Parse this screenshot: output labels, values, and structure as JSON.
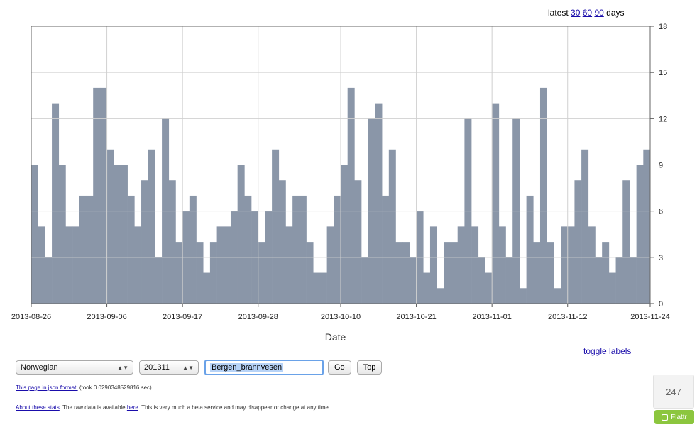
{
  "header": {
    "latest_label": "latest",
    "links": [
      "30",
      "60",
      "90"
    ],
    "days_label": "days"
  },
  "chart_data": {
    "type": "bar",
    "title": "",
    "xlabel": "Date",
    "ylabel": "",
    "ylim": [
      0,
      18
    ],
    "y_ticks": [
      0,
      3,
      6,
      9,
      12,
      15,
      18
    ],
    "y_axis_side": "right",
    "grid": true,
    "bar_color": "#8a96a8",
    "x_start": "2013-08-26",
    "x_end": "2013-11-24",
    "x_tick_labels": [
      "2013-08-26",
      "2013-09-06",
      "2013-09-17",
      "2013-09-28",
      "2013-10-10",
      "2013-10-21",
      "2013-11-01",
      "2013-11-12",
      "2013-11-24"
    ],
    "values": [
      9,
      5,
      3,
      13,
      9,
      5,
      5,
      7,
      7,
      14,
      14,
      10,
      9,
      9,
      7,
      5,
      8,
      10,
      3,
      12,
      8,
      4,
      6,
      7,
      4,
      2,
      4,
      5,
      5,
      6,
      9,
      7,
      6,
      4,
      6,
      10,
      8,
      5,
      7,
      7,
      4,
      2,
      2,
      5,
      7,
      9,
      14,
      8,
      3,
      12,
      13,
      7,
      10,
      4,
      4,
      3,
      6,
      2,
      5,
      1,
      4,
      4,
      5,
      12,
      5,
      3,
      2,
      13,
      5,
      3,
      12,
      1,
      7,
      4,
      14,
      4,
      1,
      5,
      5,
      8,
      10,
      5,
      3,
      4,
      2,
      3,
      8,
      3,
      9,
      10
    ]
  },
  "controls": {
    "language": "Norwegian",
    "month": "201311",
    "article": "Bergen_brannvesen",
    "go_label": "Go",
    "top_label": "Top",
    "toggle_labels": "toggle labels"
  },
  "footer": {
    "json_link": "This page in json format.",
    "took": "(took 0.0290348529816 sec)",
    "about_link": "About these stats",
    "raw_prefix": ". The raw data is available",
    "here_link": "here",
    "beta_text": ". This is very much a beta service and may disappear or change at any time."
  },
  "widget": {
    "count": "247",
    "flattr_label": "Flattr"
  }
}
